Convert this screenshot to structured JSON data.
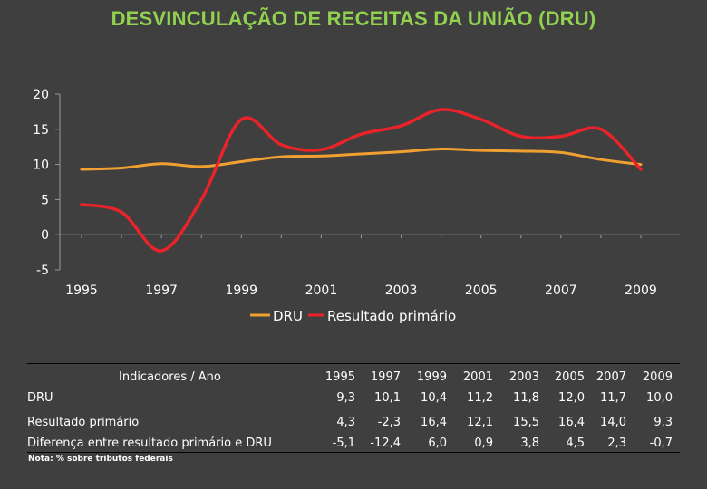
{
  "title": "DESVINCULAÇÃO DE RECEITAS DA UNIÃO (DRU)",
  "chart_data": {
    "type": "line",
    "title": "DESVINCULAÇÃO DE RECEITAS DA UNIÃO (DRU)",
    "x": [
      1995,
      1996,
      1997,
      1998,
      1999,
      2000,
      2001,
      2002,
      2003,
      2004,
      2005,
      2006,
      2007,
      2008,
      2009
    ],
    "x_tick_labels": [
      "1995",
      "1997",
      "1999",
      "2001",
      "2003",
      "2005",
      "2007",
      "2009"
    ],
    "y_tick_labels": [
      "20",
      "15",
      "10",
      "5",
      "0",
      "-5"
    ],
    "ylim": [
      -5,
      20
    ],
    "grid": false,
    "legend_position": "bottom-center",
    "series": [
      {
        "name": "DRU",
        "color": "#f0a030",
        "values": [
          9.3,
          9.5,
          10.1,
          9.7,
          10.4,
          11.1,
          11.2,
          11.5,
          11.8,
          12.2,
          12.0,
          11.9,
          11.7,
          10.7,
          10.0
        ]
      },
      {
        "name": "Resultado primário",
        "color": "#e8232a",
        "values": [
          4.3,
          3.2,
          -2.3,
          5.0,
          16.4,
          12.8,
          12.1,
          14.3,
          15.5,
          17.8,
          16.4,
          14.0,
          14.0,
          15.0,
          9.3
        ]
      }
    ]
  },
  "table": {
    "header_label": "Indicadores / Ano",
    "years": [
      "1995",
      "1997",
      "1999",
      "2001",
      "2003",
      "2005",
      "2007",
      "2009"
    ],
    "rows": [
      {
        "label": "DRU",
        "values": [
          "9,3",
          "10,1",
          "10,4",
          "11,2",
          "11,8",
          "12,0",
          "11,7",
          "10,0"
        ]
      },
      {
        "label": "Resultado primário",
        "values": [
          "4,3",
          "-2,3",
          "16,4",
          "12,1",
          "15,5",
          "16,4",
          "14,0",
          "9,3"
        ]
      },
      {
        "label": "Diferença entre resultado primário e DRU",
        "values": [
          "-5,1",
          "-12,4",
          "6,0",
          "0,9",
          "3,8",
          "4,5",
          "2,3",
          "-0,7"
        ]
      }
    ]
  },
  "note": "Nota: % sobre tributos federais"
}
